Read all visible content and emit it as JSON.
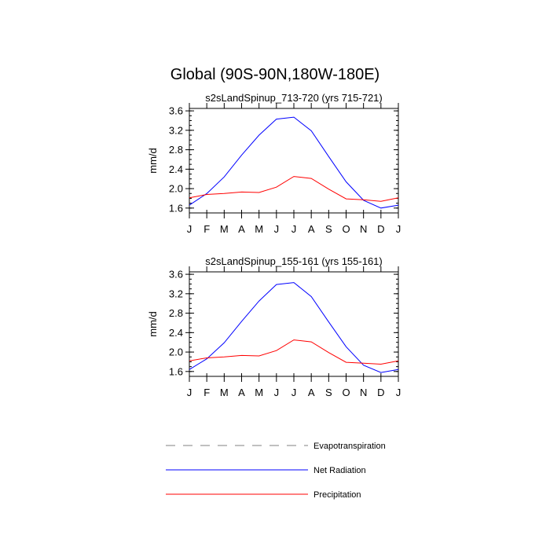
{
  "title": "Global (90S-90N,180W-180E)",
  "legend": [
    {
      "label": "Evapotranspiration",
      "color": "#808080",
      "style": "dashed"
    },
    {
      "label": "Net Radiation",
      "color": "#0000ff",
      "style": "solid"
    },
    {
      "label": "Precipitation",
      "color": "#ff0000",
      "style": "solid"
    }
  ],
  "chart_data": [
    {
      "type": "line",
      "title": "s2sLandSpinup_713-720 (yrs 715-721)",
      "xlabel": "",
      "ylabel": "mm/d",
      "categories": [
        "J",
        "F",
        "M",
        "A",
        "M",
        "J",
        "J",
        "A",
        "S",
        "O",
        "N",
        "D",
        "J"
      ],
      "ylim": [
        1.5,
        3.65
      ],
      "yticks": [
        1.6,
        2.0,
        2.4,
        2.8,
        3.2,
        3.6
      ],
      "ytick_labels": [
        "1.6",
        "2.0",
        "2.4",
        "2.8",
        "3.2",
        "3.6"
      ],
      "series": [
        {
          "name": "Net Radiation",
          "color": "#0000ff",
          "values": [
            1.66,
            1.9,
            2.24,
            2.69,
            3.1,
            3.43,
            3.47,
            3.19,
            2.66,
            2.14,
            1.76,
            1.6,
            1.66
          ]
        },
        {
          "name": "Precipitation",
          "color": "#ff0000",
          "values": [
            1.81,
            1.88,
            1.9,
            1.93,
            1.92,
            2.03,
            2.25,
            2.21,
            1.99,
            1.79,
            1.77,
            1.74,
            1.81
          ]
        }
      ]
    },
    {
      "type": "line",
      "title": "s2sLandSpinup_155-161 (yrs 155-161)",
      "xlabel": "",
      "ylabel": "mm/d",
      "categories": [
        "J",
        "F",
        "M",
        "A",
        "M",
        "J",
        "J",
        "A",
        "S",
        "O",
        "N",
        "D",
        "J"
      ],
      "ylim": [
        1.5,
        3.65
      ],
      "yticks": [
        1.6,
        2.0,
        2.4,
        2.8,
        3.2,
        3.6
      ],
      "ytick_labels": [
        "1.6",
        "2.0",
        "2.4",
        "2.8",
        "3.2",
        "3.6"
      ],
      "series": [
        {
          "name": "Net Radiation",
          "color": "#0000ff",
          "values": [
            1.64,
            1.86,
            2.19,
            2.63,
            3.05,
            3.39,
            3.43,
            3.14,
            2.62,
            2.11,
            1.73,
            1.58,
            1.64
          ]
        },
        {
          "name": "Precipitation",
          "color": "#ff0000",
          "values": [
            1.82,
            1.88,
            1.9,
            1.93,
            1.92,
            2.03,
            2.25,
            2.21,
            1.99,
            1.79,
            1.77,
            1.75,
            1.82
          ]
        }
      ]
    }
  ]
}
